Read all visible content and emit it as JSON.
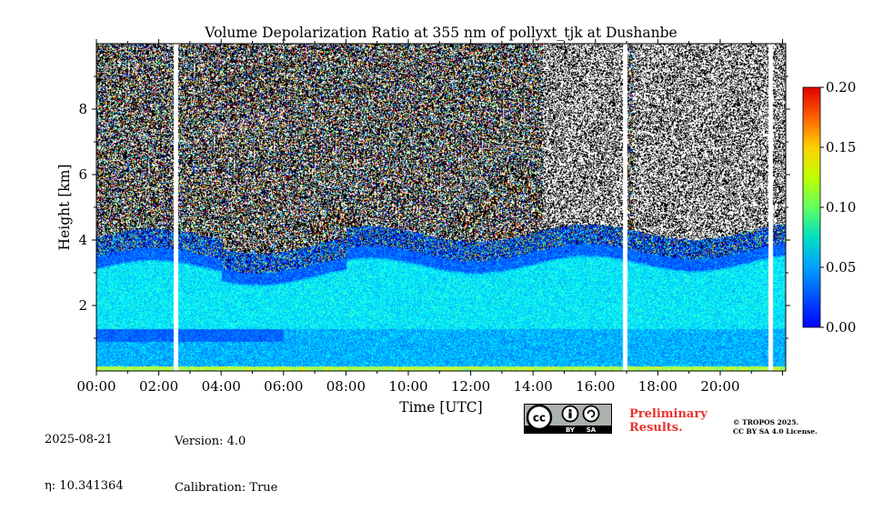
{
  "chart_data": {
    "type": "heatmap",
    "title": "Volume Depolarization Ratio at 355 nm of pollyxt_tjk at Dushanbe",
    "xlabel": "Time [UTC]",
    "ylabel": "Height [km]",
    "x_ticks": [
      "00:00",
      "02:00",
      "04:00",
      "06:00",
      "08:00",
      "10:00",
      "12:00",
      "14:00",
      "16:00",
      "18:00",
      "20:00"
    ],
    "x_range_hours": [
      0,
      22.1
    ],
    "y_ticks": [
      "2",
      "4",
      "6",
      "8"
    ],
    "y_range_km": [
      0,
      10
    ],
    "colorbar": {
      "ticks": [
        "0.00",
        "0.05",
        "0.10",
        "0.15",
        "0.20"
      ],
      "range": [
        0.0,
        0.2
      ],
      "colormap": "jet"
    },
    "data_gaps_hours": [
      2.55,
      16.95,
      21.6
    ],
    "layers": [
      {
        "name": "boundary layer aerosol",
        "top_km_start": 3.5,
        "top_km_end": 3.7,
        "depol_typical": 0.06
      },
      {
        "name": "noisy free troposphere",
        "from_km": 4.0,
        "to_km": 10.0,
        "depol_typical": "noise"
      }
    ]
  },
  "footer": {
    "date": "2025-08-21",
    "eta": "η: 10.341364",
    "version": "Version: 4.0",
    "calibration": "Calibration: True",
    "preliminary_line1": "Preliminary",
    "preliminary_line2": "Results.",
    "copyright": "© TROPOS 2025.",
    "license": "CC BY SA 4.0 License.",
    "badge_by": "BY",
    "badge_sa": "SA",
    "badge_cc": "cc"
  },
  "colors": {
    "prelim": "#e8332f",
    "badge_bg": "#aab2ab"
  }
}
